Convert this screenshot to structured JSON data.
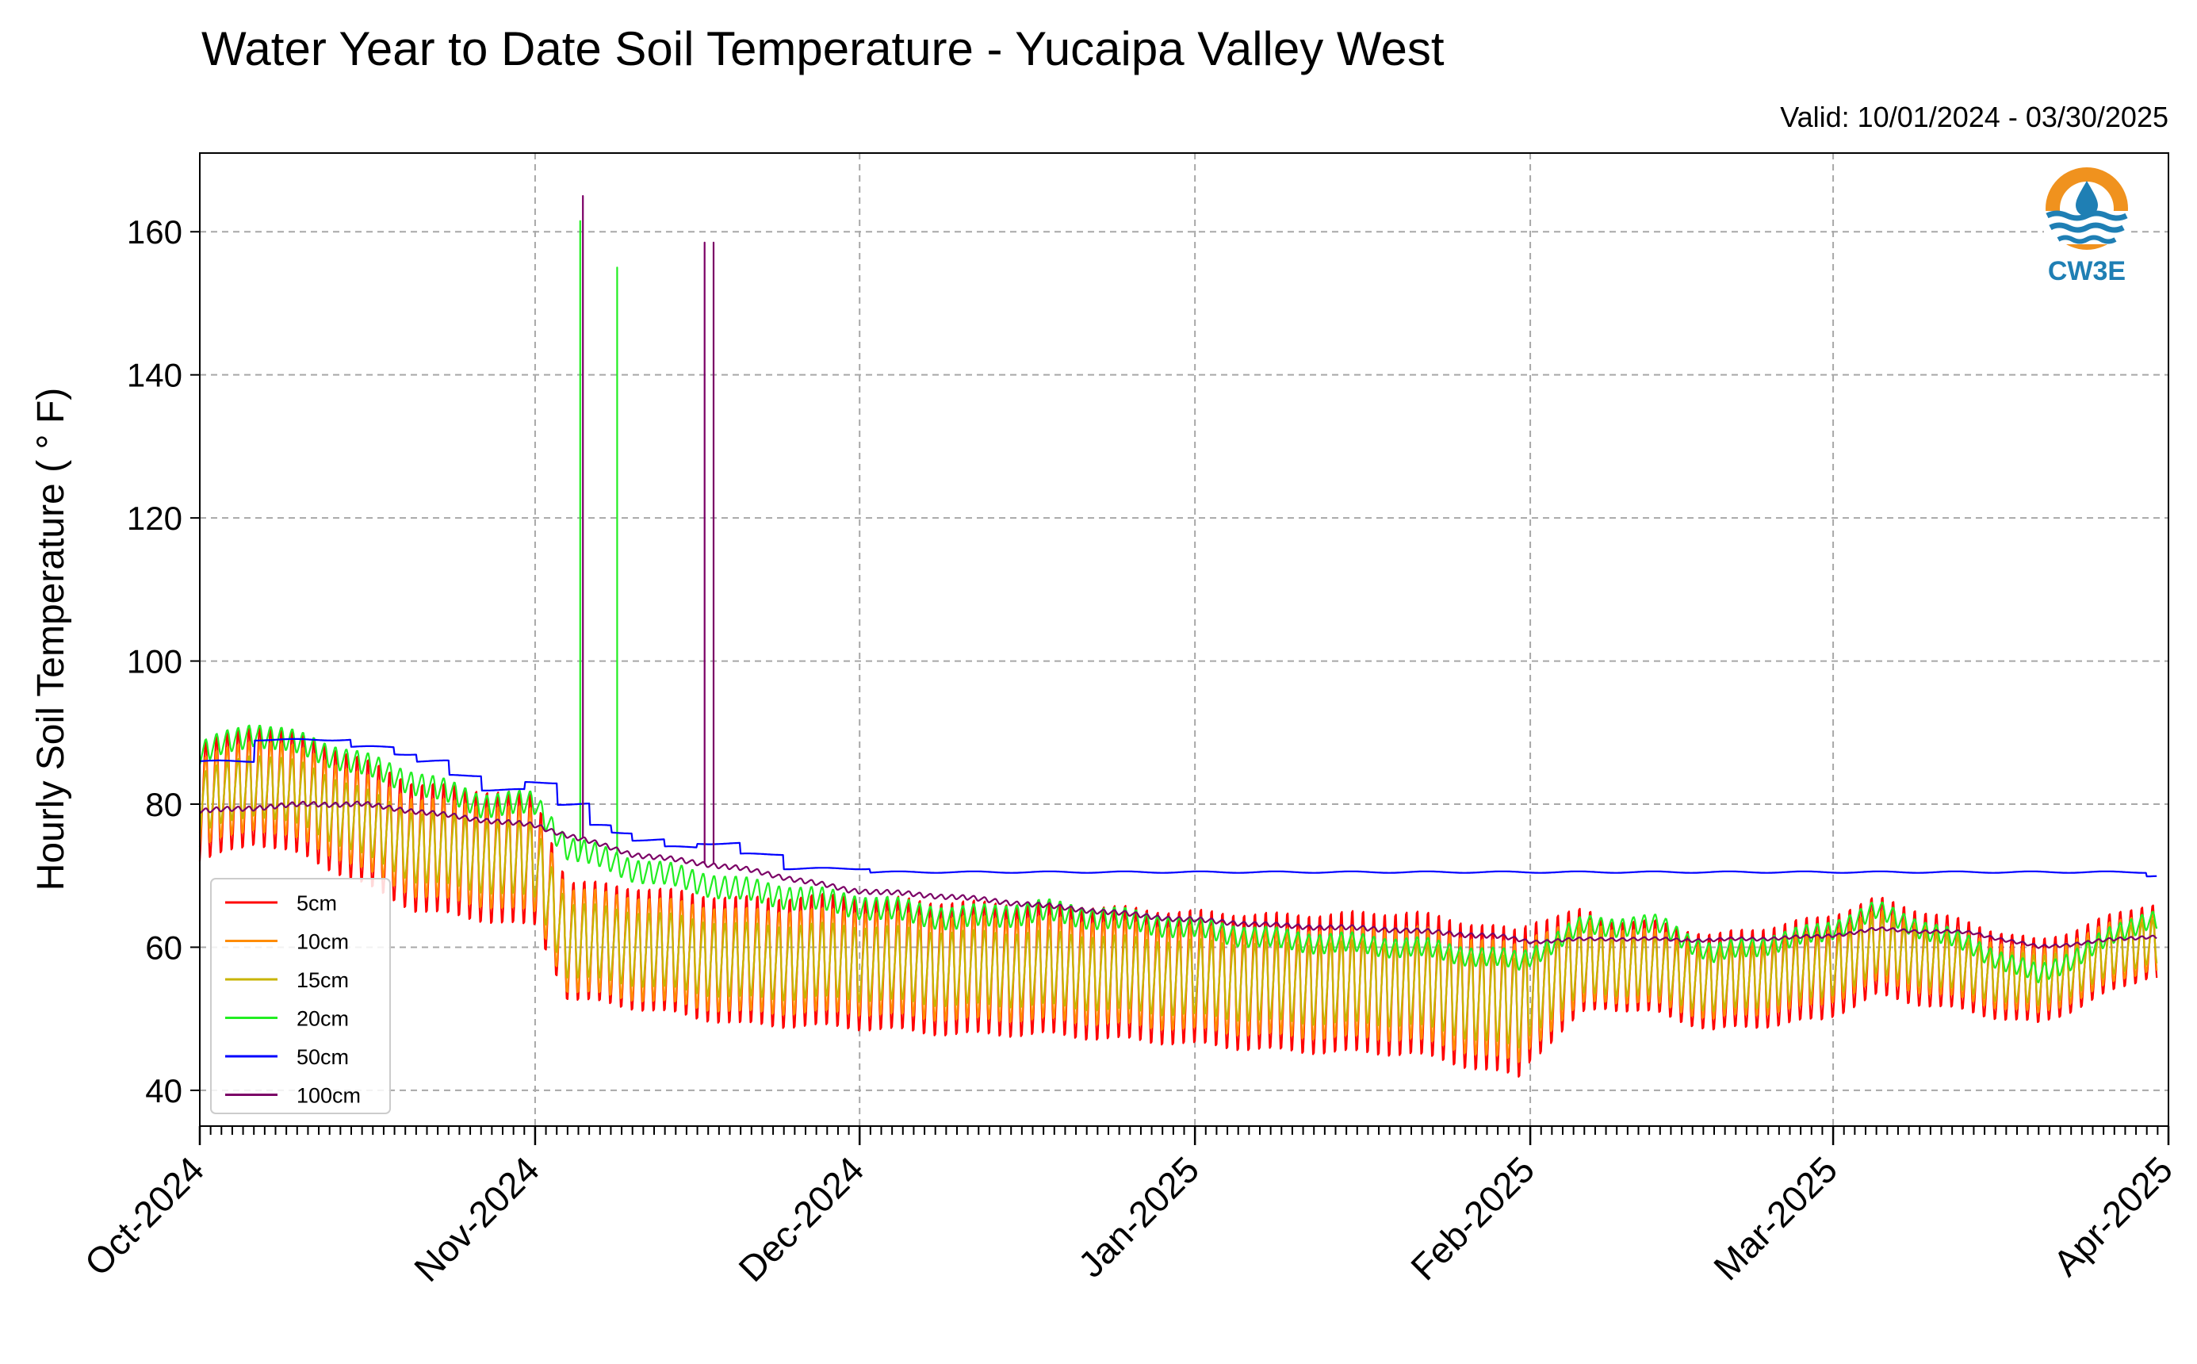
{
  "chart_data": {
    "type": "line",
    "title": "Water Year to Date Soil Temperature - Yucaipa Valley West",
    "subtitle": "Valid: 10/01/2024 - 03/30/2025",
    "xlabel": "",
    "ylabel": "Hourly Soil Temperature ( ° F)",
    "x_range": [
      "2024-10-01",
      "2025-04-01"
    ],
    "ylim": [
      35,
      171
    ],
    "yticks": [
      40,
      60,
      80,
      100,
      120,
      140,
      160
    ],
    "ytick_labels": [
      "40",
      "60",
      "80",
      "100",
      "120",
      "140",
      "160"
    ],
    "xticks": [
      "2024-10-01",
      "2024-11-01",
      "2024-12-01",
      "2025-01-01",
      "2025-02-01",
      "2025-03-01",
      "2025-04-01"
    ],
    "xtick_labels": [
      "Oct-2024",
      "Nov-2024",
      "Dec-2024",
      "Jan-2025",
      "Feb-2025",
      "Mar-2025",
      "Apr-2025"
    ],
    "grid": true,
    "legend_position": "lower-left",
    "logo_text": "CW3E",
    "series": [
      {
        "name": "5cm",
        "color": "#ff0000",
        "daily_mean": [
          [
            0,
            80
          ],
          [
            5,
            83
          ],
          [
            10,
            81
          ],
          [
            20,
            74
          ],
          [
            31,
            72
          ],
          [
            34,
            61
          ],
          [
            40,
            60
          ],
          [
            50,
            58
          ],
          [
            60,
            58
          ],
          [
            70,
            57
          ],
          [
            78,
            57
          ],
          [
            88,
            56
          ],
          [
            100,
            55
          ],
          [
            112,
            55
          ],
          [
            122,
            52
          ],
          [
            123,
            54
          ],
          [
            128,
            58
          ],
          [
            135,
            57
          ],
          [
            140,
            55
          ],
          [
            150,
            57
          ],
          [
            155,
            60
          ],
          [
            164,
            57
          ],
          [
            170,
            55
          ],
          [
            180,
            61
          ]
        ],
        "daily_amplitude": [
          [
            0,
            8
          ],
          [
            30,
            9
          ],
          [
            34,
            8
          ],
          [
            60,
            9
          ],
          [
            90,
            9
          ],
          [
            122,
            10
          ],
          [
            130,
            6
          ],
          [
            150,
            7
          ],
          [
            180,
            5
          ]
        ],
        "spikes": []
      },
      {
        "name": "10cm",
        "color": "#ff8c00",
        "daily_mean": [
          [
            0,
            80
          ],
          [
            5,
            83
          ],
          [
            10,
            81
          ],
          [
            20,
            74
          ],
          [
            31,
            72
          ],
          [
            34,
            61
          ],
          [
            40,
            60
          ],
          [
            50,
            58
          ],
          [
            60,
            58
          ],
          [
            70,
            57
          ],
          [
            78,
            57
          ],
          [
            88,
            56
          ],
          [
            100,
            55
          ],
          [
            112,
            55
          ],
          [
            122,
            52
          ],
          [
            123,
            54
          ],
          [
            128,
            58
          ],
          [
            135,
            57
          ],
          [
            140,
            55
          ],
          [
            150,
            57
          ],
          [
            155,
            60
          ],
          [
            164,
            57
          ],
          [
            170,
            55
          ],
          [
            180,
            61
          ]
        ],
        "daily_amplitude": [
          [
            0,
            6
          ],
          [
            30,
            7
          ],
          [
            60,
            7
          ],
          [
            90,
            7
          ],
          [
            122,
            8
          ],
          [
            130,
            5
          ],
          [
            150,
            5
          ],
          [
            180,
            4
          ]
        ],
        "spikes": []
      },
      {
        "name": "15cm",
        "color": "#c8b400",
        "daily_mean": [
          [
            0,
            80
          ],
          [
            5,
            83
          ],
          [
            10,
            81
          ],
          [
            20,
            74
          ],
          [
            31,
            72
          ],
          [
            34,
            61
          ],
          [
            40,
            60
          ],
          [
            50,
            58
          ],
          [
            60,
            58
          ],
          [
            70,
            57
          ],
          [
            78,
            57
          ],
          [
            88,
            56
          ],
          [
            100,
            55
          ],
          [
            112,
            55
          ],
          [
            122,
            52
          ],
          [
            123,
            54
          ],
          [
            128,
            58
          ],
          [
            135,
            57
          ],
          [
            140,
            55
          ],
          [
            150,
            57
          ],
          [
            155,
            60
          ],
          [
            164,
            57
          ],
          [
            170,
            55
          ],
          [
            180,
            61
          ]
        ],
        "daily_amplitude": [
          [
            0,
            4
          ],
          [
            30,
            5
          ],
          [
            60,
            5
          ],
          [
            90,
            5
          ],
          [
            122,
            6
          ],
          [
            130,
            4
          ],
          [
            150,
            4
          ],
          [
            180,
            3
          ]
        ],
        "spikes": []
      },
      {
        "name": "20cm",
        "color": "#22ee22",
        "daily_mean": [
          [
            0,
            87
          ],
          [
            5,
            90
          ],
          [
            10,
            88
          ],
          [
            20,
            83
          ],
          [
            26,
            80
          ],
          [
            31,
            80
          ],
          [
            34,
            74
          ],
          [
            40,
            71
          ],
          [
            50,
            68
          ],
          [
            60,
            66
          ],
          [
            70,
            64
          ],
          [
            78,
            65
          ],
          [
            90,
            63
          ],
          [
            100,
            61
          ],
          [
            112,
            60
          ],
          [
            122,
            58
          ],
          [
            128,
            63
          ],
          [
            135,
            63
          ],
          [
            140,
            59
          ],
          [
            150,
            62
          ],
          [
            155,
            65
          ],
          [
            164,
            60
          ],
          [
            170,
            56
          ],
          [
            180,
            64
          ]
        ],
        "daily_amplitude": [
          [
            0,
            1.5
          ],
          [
            60,
            1.5
          ],
          [
            120,
            1.2
          ],
          [
            180,
            1.2
          ]
        ],
        "spikes": [
          {
            "day": 35.2,
            "value": 161.5
          },
          {
            "day": 38.6,
            "value": 155
          }
        ]
      },
      {
        "name": "50cm",
        "color": "#0000ff",
        "daily_mean": [
          [
            0,
            86
          ],
          [
            5,
            89
          ],
          [
            10,
            89
          ],
          [
            14,
            88
          ],
          [
            18,
            87
          ],
          [
            20,
            86
          ],
          [
            23,
            84
          ],
          [
            26,
            82
          ],
          [
            30,
            83
          ],
          [
            33,
            80
          ],
          [
            36,
            77
          ],
          [
            38,
            76
          ],
          [
            40,
            75
          ],
          [
            43,
            74
          ],
          [
            46,
            74.5
          ],
          [
            50,
            73
          ],
          [
            54,
            71
          ],
          [
            58,
            71
          ],
          [
            62,
            70.5
          ],
          [
            180,
            70
          ]
        ],
        "daily_amplitude": [
          [
            0,
            0
          ],
          [
            180,
            0
          ]
        ],
        "spikes": []
      },
      {
        "name": "100cm",
        "color": "#7b0066",
        "daily_mean": [
          [
            0,
            79
          ],
          [
            10,
            80
          ],
          [
            15,
            80
          ],
          [
            25,
            78
          ],
          [
            31,
            77
          ],
          [
            40,
            73
          ],
          [
            50,
            71
          ],
          [
            60,
            68
          ],
          [
            70,
            67
          ],
          [
            80,
            65.5
          ],
          [
            90,
            64
          ],
          [
            100,
            63
          ],
          [
            110,
            62.5
          ],
          [
            120,
            61.5
          ],
          [
            123,
            60.8
          ],
          [
            130,
            61.2
          ],
          [
            140,
            61
          ],
          [
            150,
            61.5
          ],
          [
            155,
            62.5
          ],
          [
            164,
            62
          ],
          [
            170,
            60
          ],
          [
            180,
            61.5
          ]
        ],
        "daily_amplitude": [
          [
            0,
            0.3
          ],
          [
            120,
            0.3
          ],
          [
            123,
            0.2
          ],
          [
            180,
            0.2
          ]
        ],
        "spikes": [
          {
            "day": 35.4,
            "value": 165
          },
          {
            "day": 46.7,
            "value": 158.5
          },
          {
            "day": 47.5,
            "value": 158.5
          }
        ]
      }
    ]
  }
}
